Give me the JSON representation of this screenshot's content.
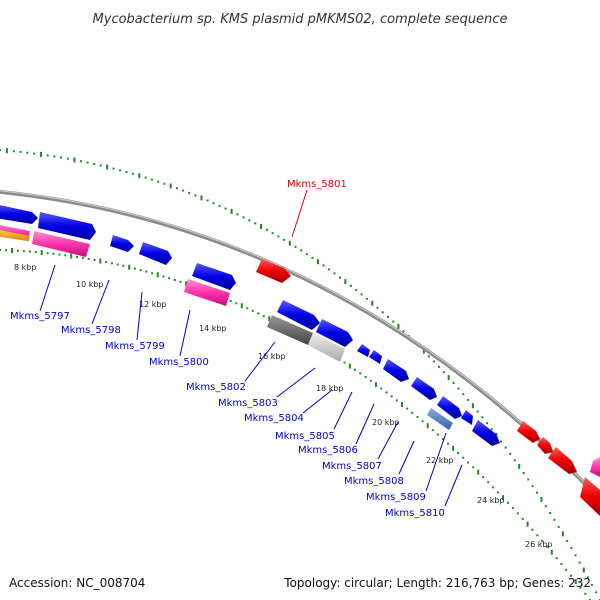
{
  "title": "Mycobacterium sp. KMS plasmid pMKMS02, complete sequence",
  "accession": "Accession: NC_008704",
  "summary": "Topology: circular; Length: 216,763 bp; Genes: 232",
  "kbp_labels": [
    "8 kbp",
    "10 kbp",
    "12 kbp",
    "14 kbp",
    "16 kbp",
    "18 kbp",
    "20 kbp",
    "22 kbp",
    "24 kbp",
    "26 kbp"
  ],
  "genes": [
    {
      "name": "Mkms_5797",
      "color": "#0000cc"
    },
    {
      "name": "Mkms_5798",
      "color": "#0000cc"
    },
    {
      "name": "Mkms_5799",
      "color": "#0000cc"
    },
    {
      "name": "Mkms_5800",
      "color": "#0000cc"
    },
    {
      "name": "Mkms_5801",
      "color": "#dd0000"
    },
    {
      "name": "Mkms_5802",
      "color": "#0000cc"
    },
    {
      "name": "Mkms_5803",
      "color": "#0000cc"
    },
    {
      "name": "Mkms_5804",
      "color": "#0000cc"
    },
    {
      "name": "Mkms_5805",
      "color": "#0000cc"
    },
    {
      "name": "Mkms_5806",
      "color": "#0000cc"
    },
    {
      "name": "Mkms_5807",
      "color": "#0000cc"
    },
    {
      "name": "Mkms_5808",
      "color": "#0000cc"
    },
    {
      "name": "Mkms_5809",
      "color": "#0000cc"
    },
    {
      "name": "Mkms_5810",
      "color": "#0000cc"
    }
  ],
  "colors": {
    "forward_cds": "#0000ee",
    "reverse_cds": "#ee0000",
    "rna": "#ff33aa",
    "backbone": "#888888",
    "gc_ticks": "#228822",
    "orange_feature": "#ff9900",
    "gray_feature": "#666666"
  }
}
